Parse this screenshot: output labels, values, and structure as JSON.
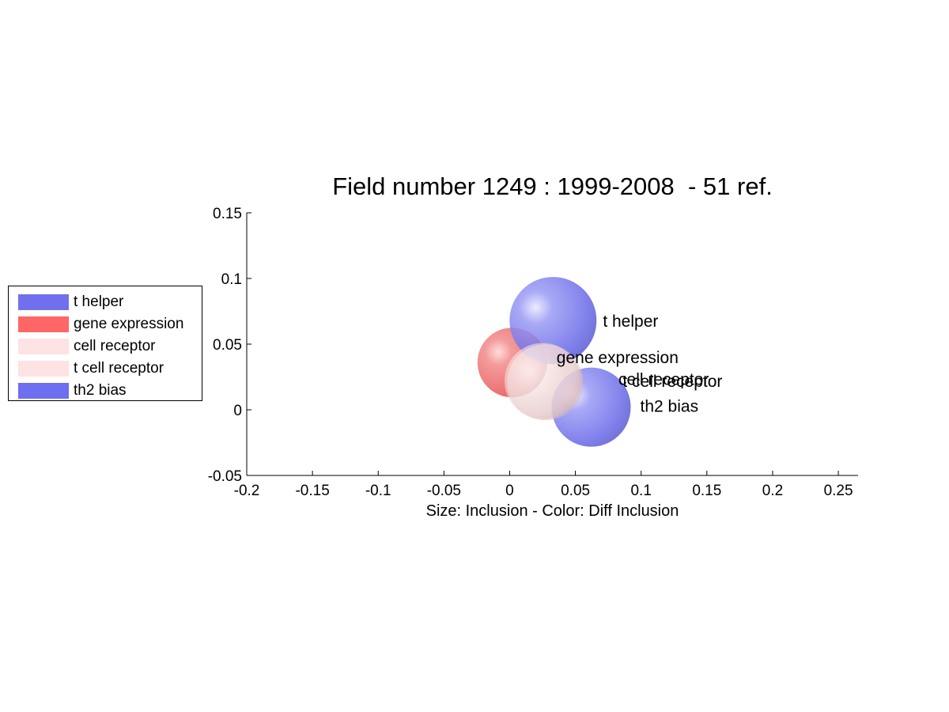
{
  "chart_data": {
    "type": "scatter",
    "title": "Field number 1249 : 1999-2008  - 51 ref.",
    "xlabel": "Size: Inclusion - Color: Diff Inclusion",
    "ylabel": "",
    "xlim": [
      -0.2,
      0.265
    ],
    "ylim": [
      -0.05,
      0.15
    ],
    "xticks": [
      "-0.2",
      "-0.15",
      "-0.1",
      "-0.05",
      "0",
      "0.05",
      "0.1",
      "0.15",
      "0.2",
      "0.25"
    ],
    "yticks": [
      "-0.05",
      "0",
      "0.05",
      "0.1",
      "0.15"
    ],
    "legend_position": "left",
    "points": [
      {
        "label": "t helper",
        "x": 0.033,
        "y": 0.068,
        "color": "#7070ee"
      },
      {
        "label": "gene expression",
        "x": 0.002,
        "y": 0.036,
        "color": "#ee6060"
      },
      {
        "label": "cell receptor",
        "x": 0.025,
        "y": 0.022,
        "color": "#f2dede"
      },
      {
        "label": "t cell receptor",
        "x": 0.027,
        "y": 0.021,
        "color": "#f2dede"
      },
      {
        "label": "th2 bias",
        "x": 0.062,
        "y": 0.002,
        "color": "#7070ee"
      }
    ]
  },
  "legend": {
    "items": [
      {
        "label": "t helper",
        "color": "#7070ee"
      },
      {
        "label": "gene expression",
        "color": "#ff6666"
      },
      {
        "label": "cell receptor",
        "color": "#fde3e3"
      },
      {
        "label": "t cell receptor",
        "color": "#fde3e3"
      },
      {
        "label": "th2 bias",
        "color": "#6e6ef0"
      }
    ]
  }
}
